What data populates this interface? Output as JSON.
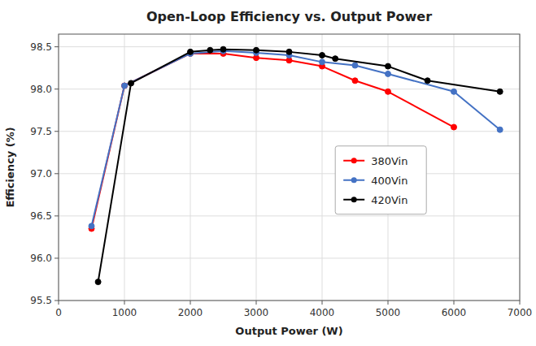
{
  "chart_data": {
    "type": "line",
    "title": "Open-Loop Efficiency vs. Output Power",
    "x_label": "Output Power (W)",
    "y_label": "Efficiency (%)",
    "xlim": [
      0,
      7000
    ],
    "ylim": [
      95.5,
      98.65
    ],
    "xticks": [
      0,
      1000,
      2000,
      3000,
      4000,
      5000,
      6000,
      7000
    ],
    "yticks": [
      95.5,
      {
        "value": 96.0,
        "label": "96.0"
      },
      96.5,
      {
        "value": 97.0,
        "label": "97.0"
      },
      97.5,
      {
        "value": 98.0,
        "label": "98.0"
      },
      98.5
    ],
    "grid": true,
    "legend": "right",
    "marker": "circle",
    "series": [
      {
        "name": "380Vin",
        "color": "#FF0000",
        "x": [
          500,
          1000,
          2000,
          2500,
          3000,
          3500,
          4000,
          4500,
          5000,
          6000
        ],
        "values": [
          96.35,
          98.04,
          98.42,
          98.42,
          98.37,
          98.34,
          98.27,
          98.1,
          97.97,
          97.55
        ]
      },
      {
        "name": "400Vin",
        "color": "#4472C4",
        "x": [
          500,
          1000,
          2000,
          2500,
          3000,
          3500,
          4000,
          4500,
          5000,
          6000,
          6700
        ],
        "values": [
          96.38,
          98.04,
          98.42,
          98.45,
          98.43,
          98.4,
          98.32,
          98.28,
          98.18,
          97.97,
          97.52
        ]
      },
      {
        "name": "420Vin",
        "color": "#000000",
        "x": [
          600,
          1100,
          2000,
          2300,
          2500,
          3000,
          3500,
          4000,
          4200,
          5000,
          5600,
          6700
        ],
        "values": [
          95.72,
          98.07,
          98.44,
          98.46,
          98.47,
          98.46,
          98.44,
          98.4,
          98.36,
          98.27,
          98.1,
          97.97
        ]
      }
    ]
  }
}
